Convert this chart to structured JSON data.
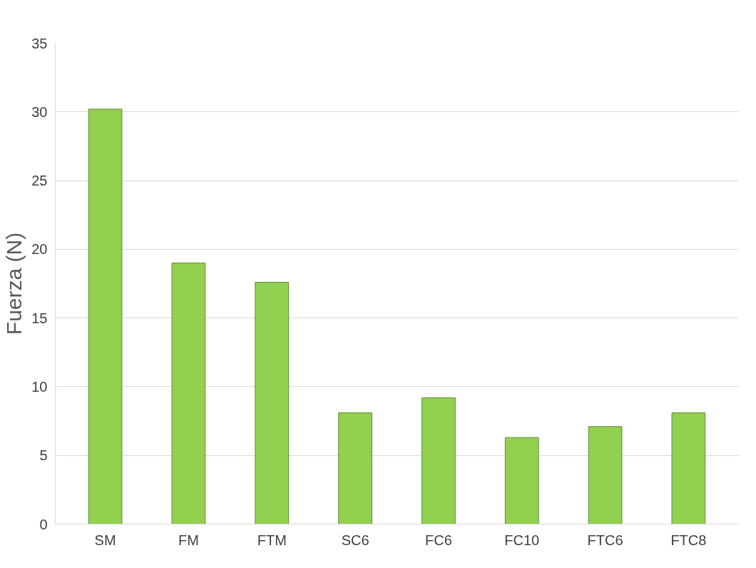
{
  "chart_data": {
    "type": "bar",
    "ylabel": "Fuerza (N)",
    "categories": [
      "SM",
      "FM",
      "FTM",
      "SC6",
      "FC6",
      "FC10",
      "FTC6",
      "FTC8"
    ],
    "values": [
      30.2,
      19.0,
      17.6,
      8.1,
      9.2,
      6.3,
      7.1,
      8.1
    ],
    "color": "#92d050",
    "ylim": [
      0,
      35
    ],
    "yticks": [
      0,
      5,
      10,
      15,
      20,
      25,
      30,
      35
    ],
    "grid": "y"
  }
}
